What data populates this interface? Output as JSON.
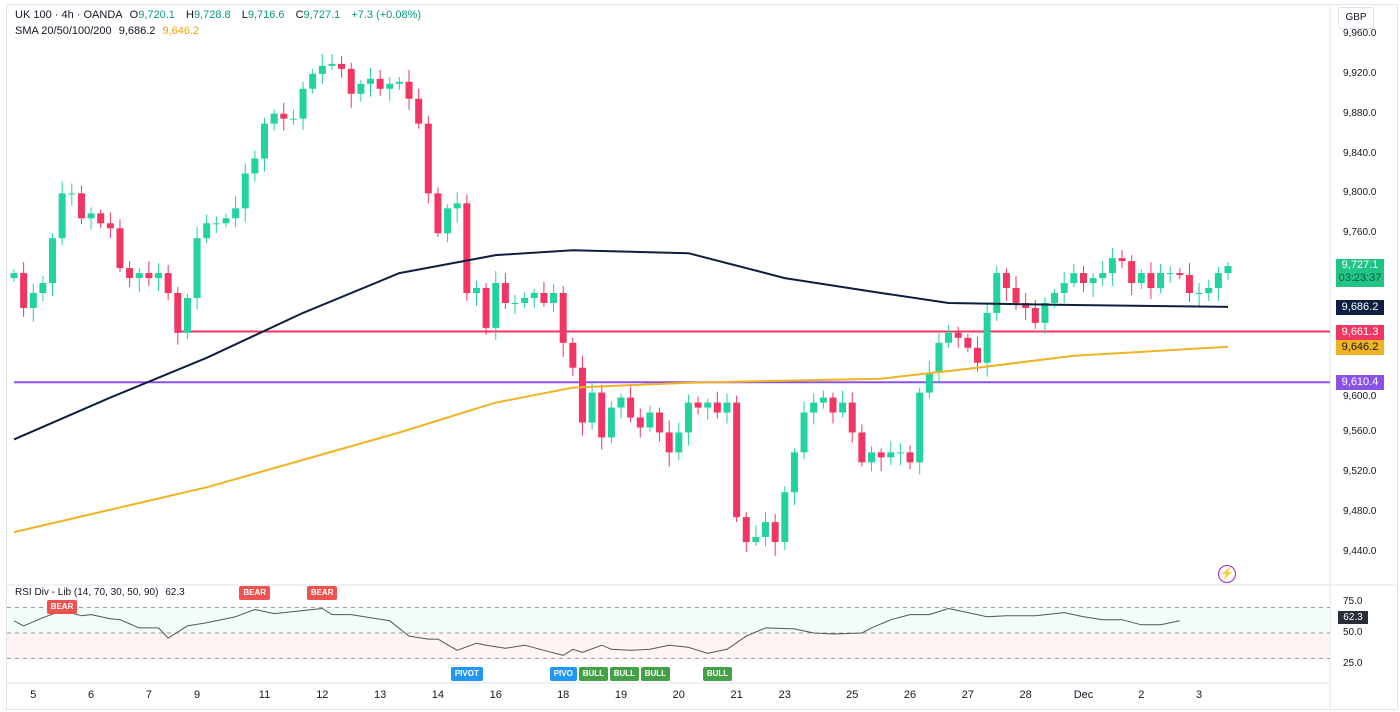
{
  "header": {
    "symbol": "UK 100 · 4h · OANDA",
    "open_label": "O",
    "open": "9,720.1",
    "high_label": "H",
    "high": "9,728.8",
    "low_label": "L",
    "low": "9,716.6",
    "close_label": "C",
    "close": "9,727.1",
    "change": "+7.3 (+0.08%)",
    "sma_label": "SMA 20/50/100/200",
    "sma1": "9,686.2",
    "sma2": "9,646.2"
  },
  "currency": "GBP",
  "price_axis": [
    "9,960.0",
    "9,920.0",
    "9,880.0",
    "9,840.0",
    "9,800.0",
    "9,760.0",
    "9,600.0",
    "9,560.0",
    "9,520.0",
    "9,480.0",
    "9,440.0"
  ],
  "price_axis_values": [
    9960,
    9920,
    9880,
    9840,
    9800,
    9760,
    9600,
    9560,
    9520,
    9480,
    9440
  ],
  "tags": {
    "last_price": "9,727.1",
    "countdown": "03:23:37",
    "sma100": "9,686.2",
    "red_line": "9,661.3",
    "sma200": "9,646.2",
    "purple_line": "9,610.4"
  },
  "colors": {
    "up": "#22d3a0",
    "down": "#f23663",
    "sma100": "#0c1f3f",
    "sma200": "#f0b323",
    "red_line": "#f23663",
    "purple_line": "#8a52e8",
    "bull": "#43a047",
    "bear": "#ef5350",
    "pivot": "#2196f3"
  },
  "chart_data": {
    "type": "candlestick",
    "ylim": [
      9420,
      9975
    ],
    "closes": [
      9720,
      9685,
      9700,
      9710,
      9755,
      9800,
      9800,
      9775,
      9780,
      9770,
      9765,
      9725,
      9715,
      9720,
      9715,
      9720,
      9700,
      9660,
      9695,
      9755,
      9770,
      9770,
      9775,
      9785,
      9820,
      9835,
      9870,
      9880,
      9875,
      9875,
      9905,
      9920,
      9928,
      9930,
      9925,
      9900,
      9910,
      9915,
      9905,
      9910,
      9912,
      9895,
      9870,
      9800,
      9760,
      9785,
      9790,
      9700,
      9705,
      9665,
      9710,
      9690,
      9690,
      9695,
      9700,
      9690,
      9700,
      9650,
      9625,
      9570,
      9600,
      9555,
      9585,
      9595,
      9575,
      9565,
      9580,
      9560,
      9540,
      9560,
      9590,
      9585,
      9590,
      9580,
      9590,
      9475,
      9450,
      9455,
      9470,
      9450,
      9500,
      9540,
      9580,
      9590,
      9595,
      9580,
      9590,
      9560,
      9530,
      9540,
      9535,
      9540,
      9540,
      9530,
      9600,
      9620,
      9650,
      9660,
      9655,
      9645,
      9630,
      9680,
      9720,
      9705,
      9690,
      9685,
      9670,
      9690,
      9700,
      9710,
      9720,
      9710,
      9715,
      9720,
      9735,
      9732,
      9710,
      9720,
      9705,
      9720,
      9720,
      9718,
      9700,
      9700,
      9705,
      9720,
      9727
    ],
    "sma100": [
      [
        0,
        9553
      ],
      [
        10,
        9595
      ],
      [
        20,
        9635
      ],
      [
        30,
        9680
      ],
      [
        40,
        9720
      ],
      [
        50,
        9738
      ],
      [
        58,
        9743
      ],
      [
        70,
        9740
      ],
      [
        80,
        9715
      ],
      [
        90,
        9700
      ],
      [
        97,
        9690
      ],
      [
        110,
        9688
      ],
      [
        126,
        9686
      ]
    ],
    "sma200": [
      [
        0,
        9460
      ],
      [
        20,
        9505
      ],
      [
        40,
        9560
      ],
      [
        50,
        9590
      ],
      [
        58,
        9605
      ],
      [
        70,
        9610
      ],
      [
        90,
        9614
      ],
      [
        100,
        9625
      ],
      [
        110,
        9637
      ],
      [
        126,
        9646
      ]
    ],
    "hlines": [
      {
        "value": 9661.3,
        "from": 17
      },
      {
        "value": 9610.4,
        "from": 0
      }
    ],
    "x_labels": [
      "5",
      "6",
      "7",
      "9",
      "11",
      "12",
      "13",
      "14",
      "16",
      "18",
      "19",
      "20",
      "21",
      "23",
      "25",
      "26",
      "27",
      "28",
      "Dec",
      "2",
      "3"
    ],
    "x_label_index": [
      2,
      8,
      14,
      19,
      26,
      32,
      38,
      44,
      50,
      57,
      63,
      69,
      75,
      80,
      87,
      93,
      99,
      105,
      111,
      117,
      123
    ]
  },
  "rsi": {
    "label": "RSI Div - Lib (14, 70, 30, 50, 90)",
    "value": "62.3",
    "axis": [
      "75.0",
      "50.0",
      "25.0"
    ],
    "series": [
      [
        0,
        62
      ],
      [
        1,
        57
      ],
      [
        2,
        61
      ],
      [
        3,
        65
      ],
      [
        5,
        72
      ],
      [
        7,
        67
      ],
      [
        8,
        68
      ],
      [
        10,
        64
      ],
      [
        11,
        63
      ],
      [
        13,
        55
      ],
      [
        15,
        55
      ],
      [
        16,
        45
      ],
      [
        18,
        57
      ],
      [
        20,
        60
      ],
      [
        21,
        62
      ],
      [
        23,
        66
      ],
      [
        25,
        73
      ],
      [
        27,
        69
      ],
      [
        29,
        71
      ],
      [
        31,
        73
      ],
      [
        32,
        74
      ],
      [
        33,
        68
      ],
      [
        35,
        68
      ],
      [
        37,
        65
      ],
      [
        39,
        62
      ],
      [
        41,
        47
      ],
      [
        43,
        44
      ],
      [
        44,
        44
      ],
      [
        46,
        33
      ],
      [
        48,
        40
      ],
      [
        49,
        38
      ],
      [
        51,
        35
      ],
      [
        53,
        38
      ],
      [
        55,
        33
      ],
      [
        57,
        28
      ],
      [
        58,
        34
      ],
      [
        59,
        31
      ],
      [
        61,
        38
      ],
      [
        62,
        34
      ],
      [
        64,
        33
      ],
      [
        66,
        34
      ],
      [
        68,
        38
      ],
      [
        70,
        36
      ],
      [
        72,
        30
      ],
      [
        74,
        34
      ],
      [
        76,
        47
      ],
      [
        78,
        55
      ],
      [
        81,
        54
      ],
      [
        83,
        50
      ],
      [
        85,
        49
      ],
      [
        88,
        50
      ],
      [
        89,
        55
      ],
      [
        91,
        63
      ],
      [
        93,
        68
      ],
      [
        95,
        68
      ],
      [
        97,
        74
      ],
      [
        99,
        70
      ],
      [
        101,
        66
      ],
      [
        103,
        67
      ],
      [
        106,
        67
      ],
      [
        109,
        70
      ],
      [
        111,
        66
      ],
      [
        113,
        63
      ],
      [
        115,
        63
      ],
      [
        117,
        58
      ],
      [
        119,
        58
      ],
      [
        121,
        62
      ]
    ],
    "markers": [
      {
        "type": "bear",
        "text": "BEAR",
        "index": 5
      },
      {
        "type": "bear",
        "text": "BEAR",
        "index": 25
      },
      {
        "type": "bear",
        "text": "BEAR",
        "index": 32
      },
      {
        "type": "pivot",
        "text": "PIVOT",
        "index": 47
      },
      {
        "type": "pivot",
        "text": "PIVO",
        "index": 57
      },
      {
        "type": "bull",
        "text": "BULL",
        "index": 59
      },
      {
        "type": "bull",
        "text": "BULL",
        "index": 63
      },
      {
        "type": "bull",
        "text": "BULL",
        "index": 66
      },
      {
        "type": "bull",
        "text": "BULL",
        "index": 73
      }
    ]
  }
}
